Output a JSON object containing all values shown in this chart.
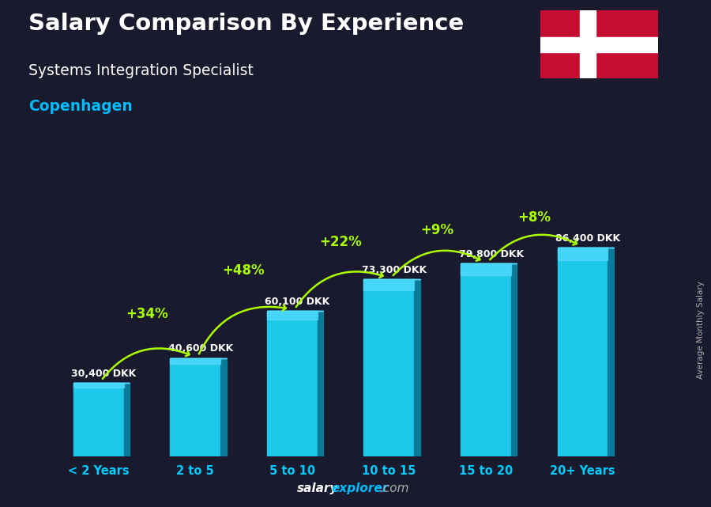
{
  "title": "Salary Comparison By Experience",
  "subtitle": "Systems Integration Specialist",
  "city": "Copenhagen",
  "categories": [
    "< 2 Years",
    "2 to 5",
    "5 to 10",
    "10 to 15",
    "15 to 20",
    "20+ Years"
  ],
  "values": [
    30400,
    40600,
    60100,
    73300,
    79800,
    86400
  ],
  "labels": [
    "30,400 DKK",
    "40,600 DKK",
    "60,100 DKK",
    "73,300 DKK",
    "79,800 DKK",
    "86,400 DKK"
  ],
  "pct_changes": [
    "+34%",
    "+48%",
    "+22%",
    "+9%",
    "+8%"
  ],
  "bar_face_color": "#1ec8e8",
  "bar_side_color": "#0a7a9a",
  "bar_top_color": "#55ddff",
  "bg_color": "#1a1a2e",
  "title_color": "#ffffff",
  "subtitle_color": "#ffffff",
  "city_color": "#00bbff",
  "label_color": "#ffffff",
  "pct_color": "#aaff00",
  "xtick_color": "#00ccff",
  "watermark_salary_color": "#ffffff",
  "watermark_explorer_color": "#00bbff",
  "watermark_com_color": "#aaaaaa",
  "ylabel_text": "Average Monthly Salary",
  "ylim": [
    0,
    105000
  ],
  "bar_width": 0.52,
  "side_ratio": 0.12,
  "flag_red": "#c60c30",
  "flag_white": "#ffffff"
}
